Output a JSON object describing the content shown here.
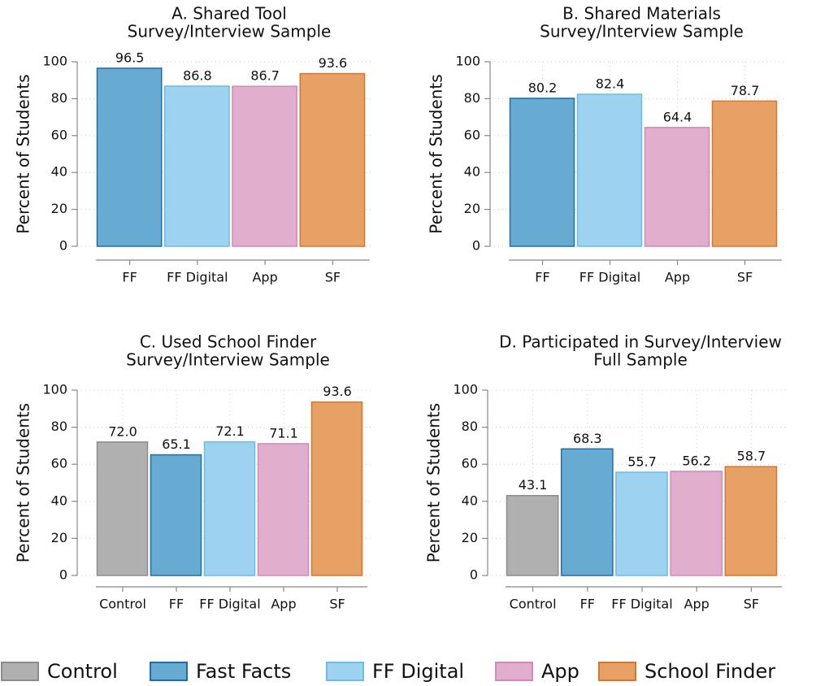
{
  "chart_data": [
    {
      "type": "bar",
      "title": "A. Shared Tool",
      "subtitle": "Survey/Interview Sample",
      "ylabel": "Percent of Students",
      "categories": [
        "FF",
        "FF Digital",
        "App",
        "SF"
      ],
      "values": [
        96.5,
        86.8,
        86.7,
        93.6
      ],
      "colors": [
        "#67aad2",
        "#9dd3f1",
        "#e2aecd",
        "#e8a165"
      ],
      "edgecolors": [
        "#1f6fa5",
        "#6bbce6",
        "#d08bb8",
        "#d6762f"
      ],
      "ylim": [
        0,
        100
      ],
      "yticks": [
        0,
        20,
        40,
        60,
        80,
        100
      ],
      "grid": true
    },
    {
      "type": "bar",
      "title": "B. Shared Materials",
      "subtitle": "Survey/Interview Sample",
      "ylabel": "Percent of Students",
      "categories": [
        "FF",
        "FF Digital",
        "App",
        "SF"
      ],
      "values": [
        80.2,
        82.4,
        64.4,
        78.7
      ],
      "colors": [
        "#67aad2",
        "#9dd3f1",
        "#e2aecd",
        "#e8a165"
      ],
      "edgecolors": [
        "#1f6fa5",
        "#6bbce6",
        "#d08bb8",
        "#d6762f"
      ],
      "ylim": [
        0,
        100
      ],
      "yticks": [
        0,
        20,
        40,
        60,
        80,
        100
      ],
      "grid": true
    },
    {
      "type": "bar",
      "title": "C. Used School Finder",
      "subtitle": "Survey/Interview Sample",
      "ylabel": "Percent of Students",
      "categories": [
        "Control",
        "FF",
        "FF Digital",
        "App",
        "SF"
      ],
      "values": [
        72,
        65.1,
        72.1,
        71.1,
        93.6
      ],
      "value_labels": [
        "72.0",
        "65.1",
        "72.1",
        "71.1",
        "93.6"
      ],
      "colors": [
        "#b0b0b0",
        "#67aad2",
        "#9dd3f1",
        "#e2aecd",
        "#e8a165"
      ],
      "edgecolors": [
        "#8c8c8c",
        "#1f6fa5",
        "#6bbce6",
        "#d08bb8",
        "#d6762f"
      ],
      "ylim": [
        0,
        100
      ],
      "yticks": [
        0,
        20,
        40,
        60,
        80,
        100
      ],
      "grid": true
    },
    {
      "type": "bar",
      "title": "D. Participated in Survey/Interview",
      "subtitle": "Full Sample",
      "ylabel": "Percent of Students",
      "categories": [
        "Control",
        "FF",
        "FF Digital",
        "App",
        "SF"
      ],
      "values": [
        43.1,
        68.3,
        55.7,
        56.2,
        58.7
      ],
      "colors": [
        "#b0b0b0",
        "#67aad2",
        "#9dd3f1",
        "#e2aecd",
        "#e8a165"
      ],
      "edgecolors": [
        "#8c8c8c",
        "#1f6fa5",
        "#6bbce6",
        "#d08bb8",
        "#d6762f"
      ],
      "ylim": [
        0,
        100
      ],
      "yticks": [
        0,
        20,
        40,
        60,
        80,
        100
      ],
      "grid": true
    }
  ],
  "legend": {
    "items": [
      {
        "name": "Control",
        "color": "#b0b0b0",
        "edgecolor": "#8c8c8c"
      },
      {
        "name": "Fast Facts",
        "color": "#67aad2",
        "edgecolor": "#1f6fa5"
      },
      {
        "name": "FF Digital",
        "color": "#9dd3f1",
        "edgecolor": "#6bbce6"
      },
      {
        "name": "App",
        "color": "#e2aecd",
        "edgecolor": "#d08bb8"
      },
      {
        "name": "School Finder",
        "color": "#e8a165",
        "edgecolor": "#d6762f"
      }
    ]
  }
}
